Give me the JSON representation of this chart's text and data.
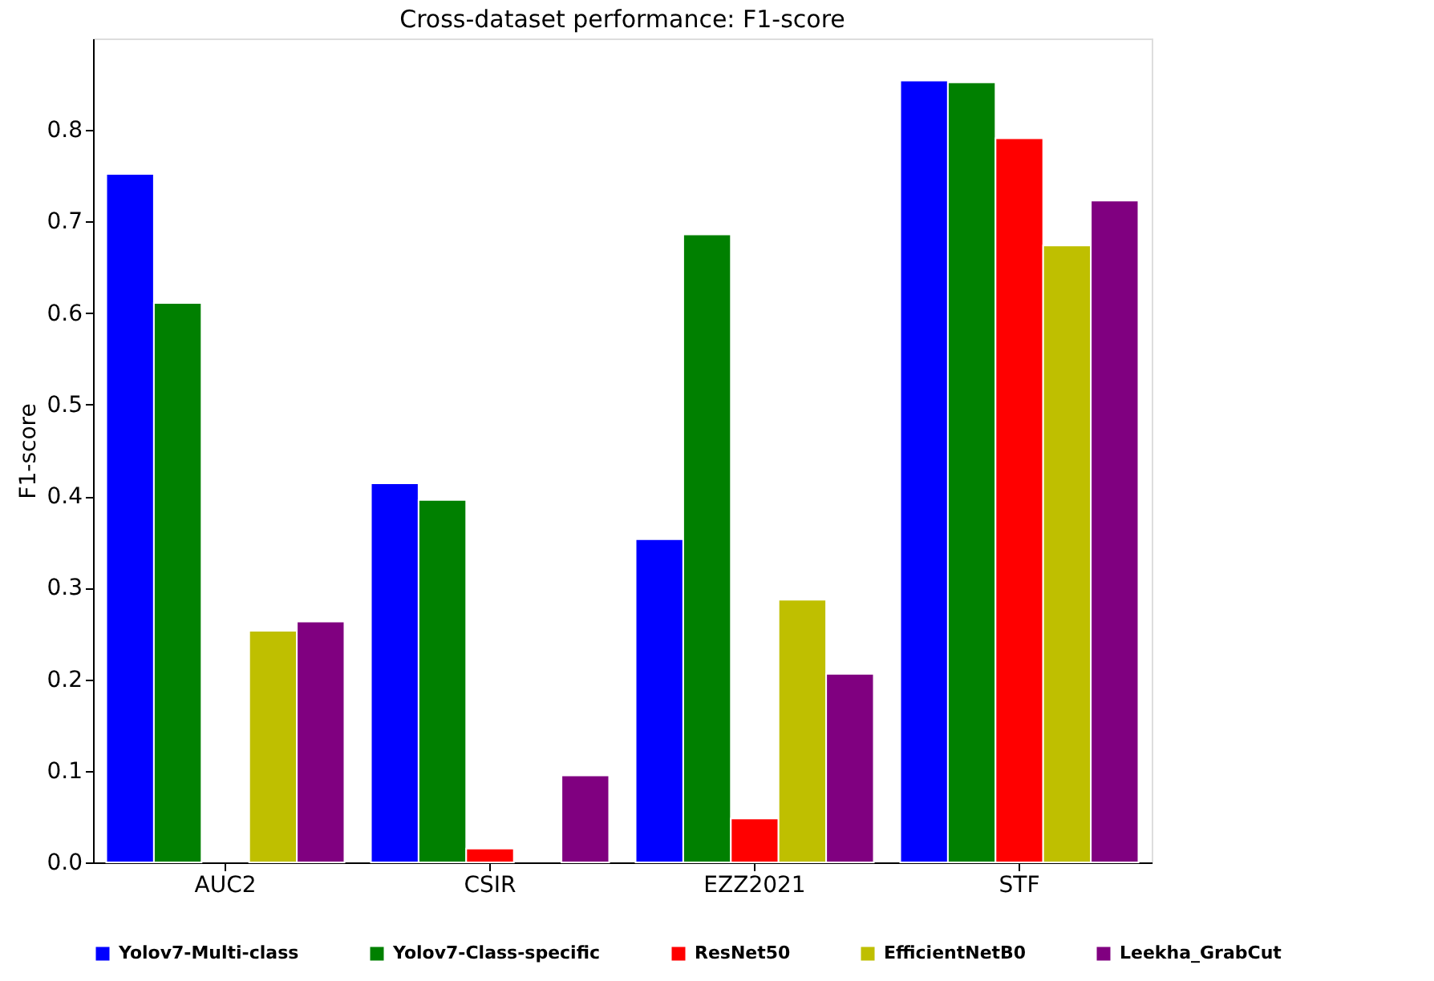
{
  "chart_data": {
    "type": "bar",
    "title": "Cross-dataset performance: F1-score",
    "ylabel": "F1-score",
    "categories": [
      "AUC2",
      "CSIR",
      "EZZ2021",
      "STF"
    ],
    "series": [
      {
        "name": "Yolov7-Multi-class",
        "color": "#0000ff",
        "values": [
          0.752,
          0.414,
          0.353,
          0.854
        ]
      },
      {
        "name": "Yolov7-Class-specific",
        "color": "#008000",
        "values": [
          0.611,
          0.396,
          0.686,
          0.852
        ]
      },
      {
        "name": "ResNet50",
        "color": "#ff0000",
        "values": [
          null,
          0.015,
          0.048,
          0.791
        ]
      },
      {
        "name": "EfficientNetB0",
        "color": "#bfbf00",
        "values": [
          0.253,
          null,
          0.287,
          0.674
        ]
      },
      {
        "name": "Leekha_GrabCut",
        "color": "#800080",
        "values": [
          0.263,
          0.095,
          0.206,
          0.723
        ]
      }
    ],
    "ylim": [
      0,
      0.9
    ],
    "yticks": [
      {
        "value": 0,
        "label": "0.0"
      },
      0.1,
      0.2,
      0.3,
      0.4,
      0.5,
      0.6,
      0.7,
      0.8
    ],
    "grid": false,
    "legend": "bottom"
  }
}
